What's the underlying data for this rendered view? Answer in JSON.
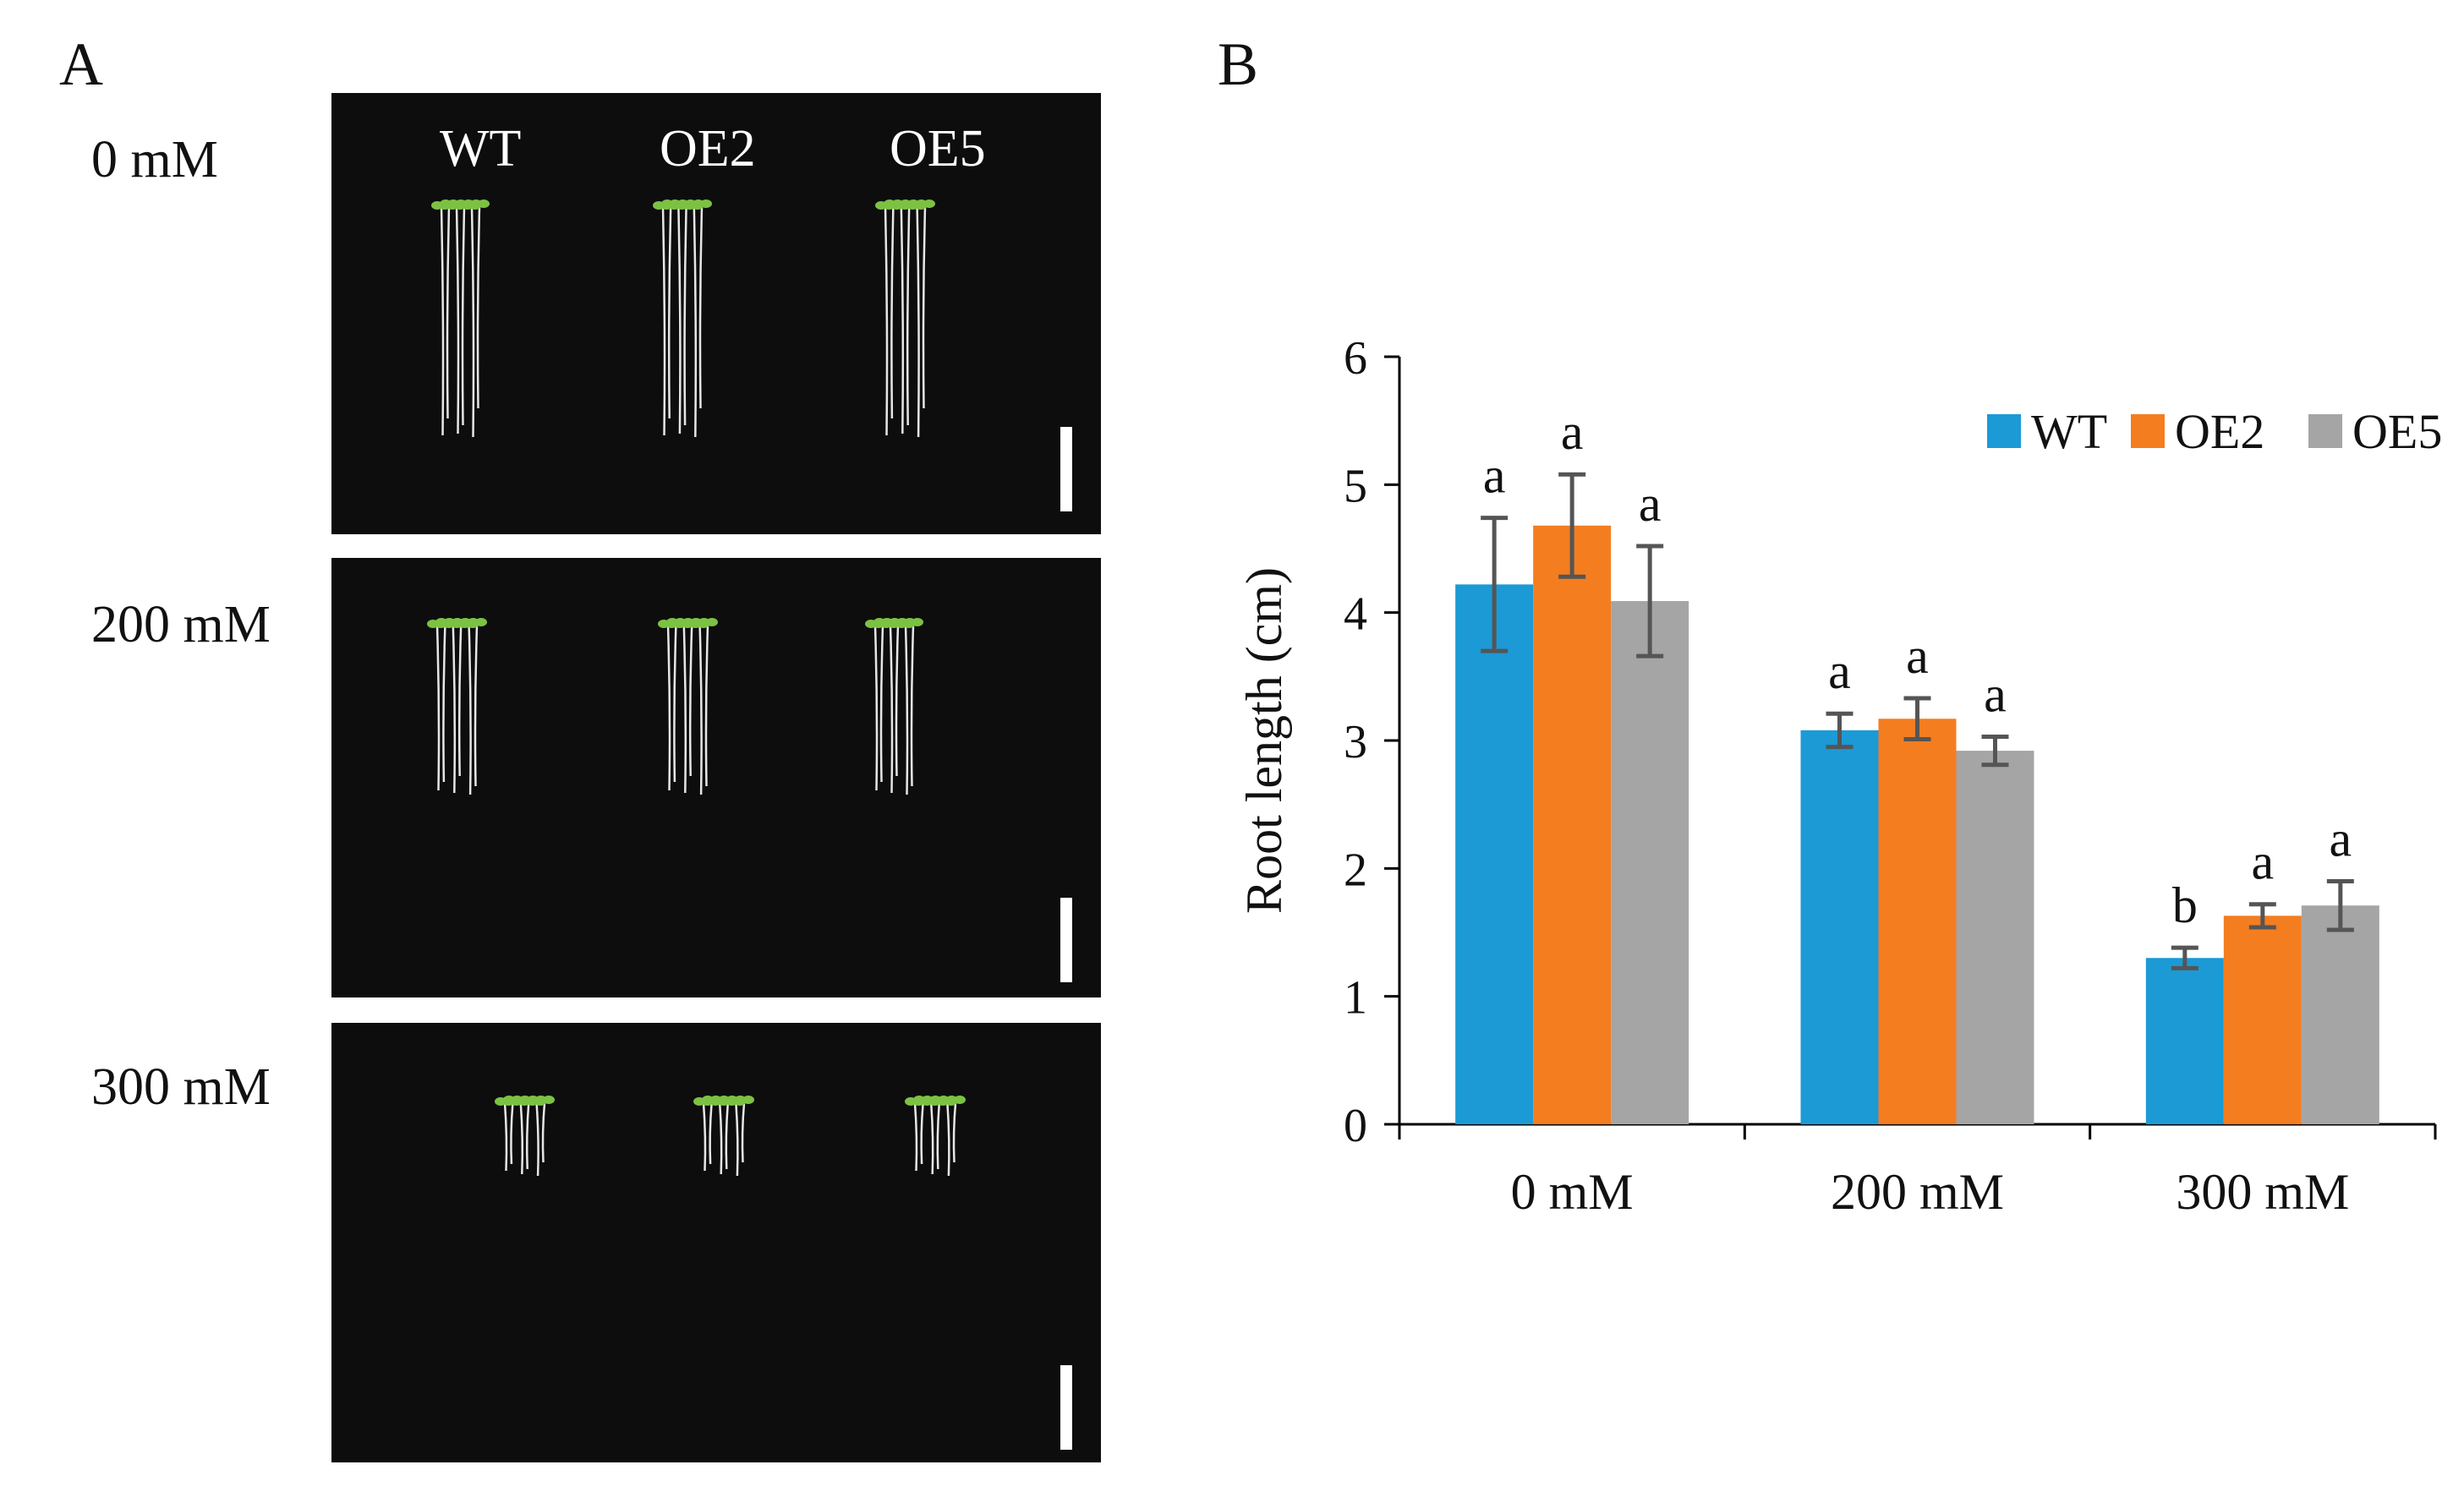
{
  "panel_a": {
    "letter": "A",
    "conditions": [
      "0 mM",
      "200 mM",
      "300 mM"
    ],
    "genotypes": [
      "WT",
      "OE2",
      "OE5"
    ],
    "colors": {
      "plate": "#0d0d0d",
      "seedling_leaf": "#7cc242",
      "root": "#e6e6e6",
      "scale_bar": "#ffffff"
    }
  },
  "panel_b": {
    "letter": "B"
  },
  "chart_data": {
    "type": "bar",
    "ylabel": "Root length (cm)",
    "ylim": [
      0,
      6
    ],
    "yticks": [
      0,
      1,
      2,
      3,
      4,
      5,
      6
    ],
    "categories": [
      "0 mM",
      "200 mM",
      "300 mM"
    ],
    "legend_position": "top-right",
    "series": [
      {
        "name": "WT",
        "color": "#1b9ad6",
        "values": [
          4.22,
          3.08,
          1.3
        ],
        "errors": [
          0.52,
          0.13,
          0.08
        ],
        "letters": [
          "a",
          "a",
          "b"
        ]
      },
      {
        "name": "OE2",
        "color": "#f47d20",
        "values": [
          4.68,
          3.17,
          1.63
        ],
        "errors": [
          0.4,
          0.16,
          0.09
        ],
        "letters": [
          "a",
          "a",
          "a"
        ]
      },
      {
        "name": "OE5",
        "color": "#a5a5a5",
        "values": [
          4.09,
          2.92,
          1.71
        ],
        "errors": [
          0.43,
          0.11,
          0.19
        ],
        "letters": [
          "a",
          "a",
          "a"
        ]
      }
    ]
  }
}
